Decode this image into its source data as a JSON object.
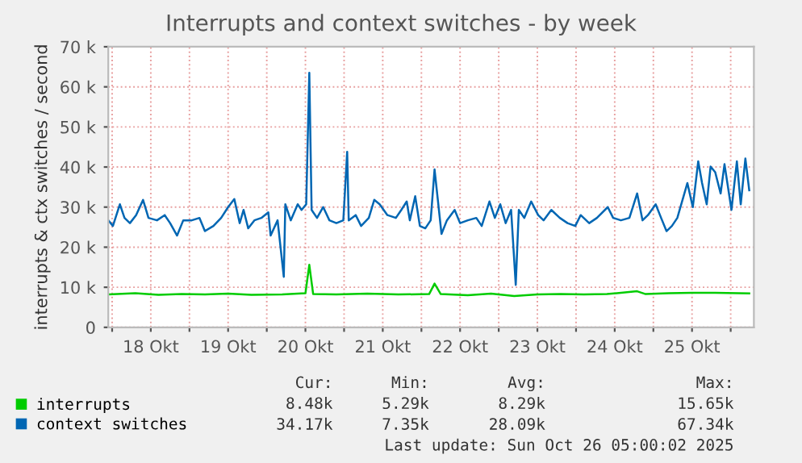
{
  "chart_data": {
    "type": "line",
    "title": "Interrupts and context switches - by week",
    "ylabel": "interrupts & ctx switches / second",
    "xlim": [
      17.95,
      26.3
    ],
    "ylim": [
      0,
      70000
    ],
    "xticks": [
      {
        "value": 18,
        "label": null
      },
      {
        "value": 18.5,
        "label": "18 Okt"
      },
      {
        "value": 19,
        "label": null
      },
      {
        "value": 19.5,
        "label": "19 Okt"
      },
      {
        "value": 20,
        "label": null
      },
      {
        "value": 20.5,
        "label": "20 Okt"
      },
      {
        "value": 21,
        "label": null
      },
      {
        "value": 21.5,
        "label": "21 Okt"
      },
      {
        "value": 22,
        "label": null
      },
      {
        "value": 22.5,
        "label": "22 Okt"
      },
      {
        "value": 23,
        "label": null
      },
      {
        "value": 23.5,
        "label": "23 Okt"
      },
      {
        "value": 24,
        "label": null
      },
      {
        "value": 24.5,
        "label": "24 Okt"
      },
      {
        "value": 25,
        "label": null
      },
      {
        "value": 25.5,
        "label": "25 Okt"
      },
      {
        "value": 26,
        "label": null
      }
    ],
    "yticks": [
      0,
      {
        "value": 10000,
        "label": "10 k"
      },
      {
        "value": 20000,
        "label": "20 k"
      },
      {
        "value": 30000,
        "label": "30 k"
      },
      {
        "value": 40000,
        "label": "40 k"
      },
      {
        "value": 50000,
        "label": "50 k"
      },
      {
        "value": 60000,
        "label": "60 k"
      },
      {
        "value": 70000,
        "label": "70 k"
      }
    ],
    "grid": true,
    "legend": "bottom",
    "series": [
      {
        "name": "interrupts",
        "color": "#00cc00",
        "x": [
          17.95,
          18.3,
          18.6,
          18.9,
          19.2,
          19.5,
          19.8,
          20.2,
          20.5,
          20.55,
          20.6,
          20.9,
          21.3,
          21.7,
          22.1,
          22.17,
          22.25,
          22.6,
          22.9,
          23.2,
          23.5,
          23.8,
          24.1,
          24.4,
          24.79,
          24.9,
          25.2,
          25.5,
          25.8,
          26.1,
          26.24
        ],
        "values": [
          8200,
          8500,
          8100,
          8300,
          8200,
          8400,
          8100,
          8200,
          8500,
          15600,
          8300,
          8200,
          8400,
          8200,
          8300,
          10900,
          8300,
          8000,
          8400,
          7800,
          8200,
          8300,
          8200,
          8300,
          9000,
          8300,
          8500,
          8600,
          8600,
          8500,
          8480
        ]
      },
      {
        "name": "context switches",
        "color": "#0066b3",
        "x": [
          17.95,
          18.01,
          18.1,
          18.16,
          18.23,
          18.31,
          18.4,
          18.47,
          18.58,
          18.68,
          18.75,
          18.84,
          18.92,
          19.03,
          19.13,
          19.2,
          19.31,
          19.41,
          19.5,
          19.58,
          19.65,
          19.7,
          19.76,
          19.84,
          19.93,
          20.02,
          20.05,
          20.14,
          20.22,
          20.24,
          20.31,
          20.4,
          20.45,
          20.51,
          20.55,
          20.58,
          20.65,
          20.73,
          20.81,
          20.9,
          20.99,
          21.04,
          21.06,
          21.15,
          21.22,
          21.32,
          21.39,
          21.46,
          21.56,
          21.67,
          21.74,
          21.81,
          21.85,
          21.92,
          21.98,
          22.05,
          22.12,
          22.17,
          22.26,
          22.33,
          22.43,
          22.5,
          22.6,
          22.71,
          22.78,
          22.88,
          22.95,
          23.02,
          23.09,
          23.16,
          23.22,
          23.26,
          23.33,
          23.42,
          23.51,
          23.58,
          23.68,
          23.79,
          23.89,
          23.99,
          24.06,
          24.17,
          24.27,
          24.41,
          24.48,
          24.58,
          24.69,
          24.79,
          24.86,
          24.93,
          25.03,
          25.1,
          25.17,
          25.24,
          25.31,
          25.38,
          25.44,
          25.51,
          25.58,
          25.63,
          25.69,
          25.74,
          25.8,
          25.87,
          25.92,
          26.01,
          26.08,
          26.13,
          26.19,
          26.24
        ],
        "values": [
          26700,
          25300,
          30700,
          27300,
          26000,
          28000,
          31800,
          27300,
          26700,
          28000,
          26000,
          22900,
          26700,
          26700,
          27300,
          24000,
          25300,
          27300,
          30000,
          32000,
          26000,
          29300,
          24700,
          26700,
          27300,
          28700,
          22900,
          26700,
          12600,
          30700,
          26700,
          30700,
          29300,
          30700,
          63500,
          29300,
          27300,
          30000,
          26700,
          26000,
          26700,
          43800,
          26700,
          28000,
          25300,
          27300,
          31800,
          30700,
          28000,
          27300,
          29300,
          31400,
          26700,
          32700,
          25300,
          24700,
          26700,
          39400,
          23300,
          26700,
          29300,
          26000,
          26700,
          27300,
          25300,
          31400,
          27300,
          30700,
          26000,
          29300,
          10600,
          29300,
          27300,
          31400,
          28000,
          26700,
          29300,
          27300,
          26000,
          25300,
          28000,
          26000,
          27300,
          30000,
          27300,
          26700,
          27300,
          33400,
          26700,
          28000,
          30700,
          27300,
          24000,
          25300,
          27300,
          32000,
          36000,
          30000,
          41400,
          36000,
          30700,
          40100,
          38700,
          33400,
          40700,
          29300,
          41400,
          30700,
          42100,
          34200
        ]
      }
    ],
    "annotations": [
      "Cur:",
      "Min:",
      "Avg:",
      "Max:",
      "8.48k",
      "5.29k",
      "8.29k",
      "15.65k",
      "34.17k",
      "7.35k",
      "28.09k",
      "67.34k",
      "Last update: Sun Oct 26 05:00:02 2025"
    ]
  }
}
